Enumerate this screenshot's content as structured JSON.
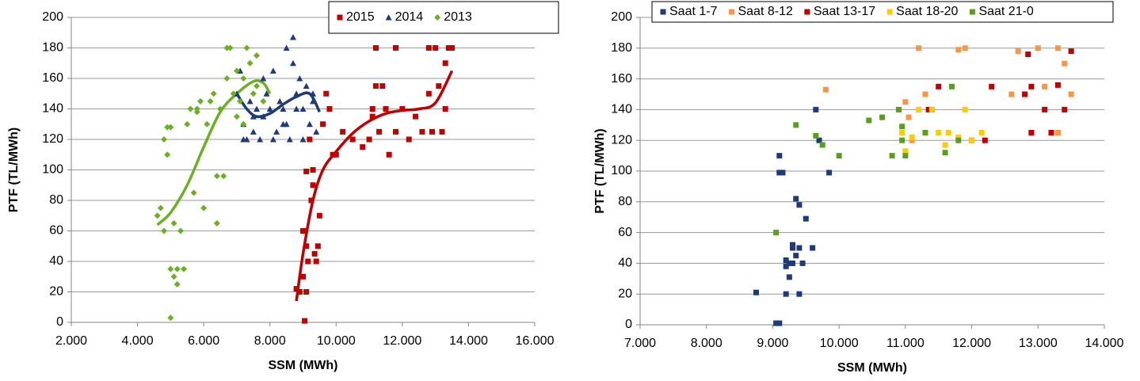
{
  "chart_data": [
    {
      "type": "scatter",
      "xlabel": "SSM (MWh)",
      "ylabel": "PTF (TL/MWh)",
      "xlim": [
        2000,
        16000
      ],
      "xticks": [
        {
          "value": 2000,
          "label": "2.000"
        },
        {
          "value": 4000,
          "label": "4.000"
        },
        {
          "value": 6000,
          "label": "6.000"
        },
        {
          "value": 8000,
          "label": "8.000"
        },
        {
          "value": 10000,
          "label": "10.000"
        },
        {
          "value": 12000,
          "label": "12.000"
        },
        {
          "value": 14000,
          "label": "14.000"
        },
        {
          "value": 16000,
          "label": "16.000"
        }
      ],
      "ylim": [
        0,
        200
      ],
      "yticks": [
        0,
        20,
        40,
        60,
        80,
        100,
        120,
        140,
        160,
        180,
        200
      ],
      "grid": true,
      "legend": "top-right",
      "series": [
        {
          "name": "2015",
          "color": "#c00000",
          "marker": "square",
          "x": [
            8800,
            8900,
            9000,
            9050,
            9100,
            9100,
            9150,
            9200,
            9250,
            9300,
            9350,
            9400,
            9450,
            9500,
            9600,
            9700,
            9800,
            9900,
            10000,
            10200,
            10500,
            10800,
            11000,
            11100,
            11200,
            11300,
            11400,
            11500,
            11600,
            11800,
            12000,
            12200,
            12400,
            12600,
            12800,
            13000,
            13100,
            13200,
            13300,
            13400,
            9000,
            9100,
            9300,
            11200,
            11800,
            12800,
            13300,
            13500,
            11100,
            12900
          ],
          "values": [
            22,
            20,
            60,
            1,
            99,
            50,
            40,
            120,
            80,
            90,
            45,
            40,
            50,
            70,
            130,
            150,
            140,
            110,
            110,
            125,
            120,
            115,
            120,
            140,
            155,
            125,
            155,
            140,
            110,
            125,
            140,
            120,
            135,
            125,
            150,
            180,
            155,
            125,
            140,
            180,
            30,
            20,
            100,
            180,
            180,
            180,
            170,
            180,
            135,
            125
          ],
          "trendline": {
            "x": [
              8800,
              9000,
              9300,
              9600,
              10000,
              10500,
              11000,
              11500,
              12000,
              12500,
              13000,
              13500
            ],
            "values": [
              14,
              45,
              80,
              100,
              112,
              124,
              132,
              137,
              139,
              140,
              144,
              165
            ]
          }
        },
        {
          "name": "2014",
          "color": "#1f3a7a",
          "marker": "triangle",
          "x": [
            7000,
            7100,
            7200,
            7300,
            7400,
            7500,
            7600,
            7700,
            7800,
            7900,
            8000,
            8100,
            8200,
            8300,
            8400,
            8500,
            8600,
            8700,
            8800,
            8900,
            9000,
            9100,
            9200,
            9300,
            9400,
            7200,
            7500,
            7800,
            8100,
            8400,
            8700,
            9000,
            9300,
            8500,
            8800
          ],
          "values": [
            150,
            165,
            130,
            120,
            145,
            125,
            140,
            120,
            135,
            150,
            140,
            165,
            125,
            145,
            130,
            180,
            120,
            187,
            150,
            160,
            140,
            155,
            130,
            150,
            125,
            120,
            135,
            160,
            120,
            140,
            170,
            120,
            145,
            130,
            140
          ],
          "trendline": {
            "x": [
              7000,
              7300,
              7600,
              8000,
              8400,
              8800,
              9200,
              9500
            ],
            "values": [
              150,
              140,
              135,
              137,
              143,
              148,
              150,
              138
            ]
          }
        },
        {
          "name": "2013",
          "color": "#6ab023",
          "marker": "diamond",
          "x": [
            4600,
            4700,
            4800,
            4900,
            5000,
            5000,
            5100,
            5100,
            5200,
            5200,
            5300,
            5400,
            5500,
            5600,
            5700,
            5800,
            5900,
            6000,
            6100,
            6200,
            6300,
            6400,
            6500,
            6600,
            6700,
            6800,
            6900,
            7000,
            7100,
            7200,
            7300,
            7400,
            7500,
            7600,
            7800,
            4800,
            4900,
            5000,
            5400,
            6400,
            6700,
            7200,
            7000,
            7600,
            5800
          ],
          "values": [
            70,
            75,
            60,
            128,
            35,
            3,
            65,
            30,
            35,
            25,
            60,
            35,
            130,
            140,
            85,
            140,
            145,
            75,
            130,
            145,
            150,
            65,
            140,
            96,
            160,
            180,
            150,
            165,
            145,
            160,
            180,
            170,
            150,
            155,
            145,
            120,
            110,
            128,
            35,
            96,
            180,
            130,
            135,
            175,
            138
          ],
          "trendline": {
            "x": [
              4600,
              5000,
              5500,
              6000,
              6500,
              7000,
              7500,
              7800,
              8000
            ],
            "values": [
              64,
              72,
              90,
              115,
              138,
              150,
              158,
              157,
              150
            ]
          }
        }
      ]
    },
    {
      "type": "scatter",
      "xlabel": "SSM (MWh)",
      "ylabel": "PTF (TL/MWh)",
      "xlim": [
        7000,
        14000
      ],
      "xticks": [
        {
          "value": 7000,
          "label": "7.000"
        },
        {
          "value": 8000,
          "label": "8.000"
        },
        {
          "value": 9000,
          "label": "9.000"
        },
        {
          "value": 10000,
          "label": "10.000"
        },
        {
          "value": 11000,
          "label": "11.000"
        },
        {
          "value": 12000,
          "label": "12.000"
        },
        {
          "value": 13000,
          "label": "13.000"
        },
        {
          "value": 14000,
          "label": "14.000"
        }
      ],
      "ylim": [
        0,
        200
      ],
      "yticks": [
        0,
        20,
        40,
        60,
        80,
        100,
        120,
        140,
        160,
        180,
        200
      ],
      "grid": true,
      "legend": "top-left",
      "series": [
        {
          "name": "Saat 1-7",
          "color": "#1f3a7a",
          "marker": "square",
          "x": [
            8750,
            9050,
            9100,
            9150,
            9200,
            9250,
            9300,
            9350,
            9400,
            9450,
            9500,
            9600,
            9650,
            9700,
            9850,
            9100,
            9200,
            9300,
            9400,
            9250,
            9300,
            9350,
            9100,
            9400,
            9200
          ],
          "values": [
            21,
            1,
            110,
            99,
            38,
            40,
            50,
            82,
            78,
            40,
            69,
            50,
            140,
            120,
            99,
            1,
            20,
            40,
            20,
            31,
            52,
            45,
            99,
            50,
            42
          ]
        },
        {
          "name": "Saat 8-12",
          "color": "#f79646",
          "marker": "square",
          "x": [
            9800,
            11000,
            11100,
            11200,
            11300,
            11800,
            11900,
            12600,
            12700,
            12900,
            13000,
            13100,
            13300,
            13400,
            13500,
            13300,
            11050
          ],
          "values": [
            153,
            145,
            120,
            180,
            150,
            179,
            180,
            150,
            178,
            125,
            180,
            155,
            180,
            170,
            150,
            125,
            135
          ]
        },
        {
          "name": "Saat 13-17",
          "color": "#c00000",
          "marker": "square",
          "x": [
            11400,
            11500,
            12000,
            12200,
            12300,
            12800,
            12850,
            12900,
            13100,
            13200,
            13300,
            13400,
            13500,
            11350,
            12900,
            13200
          ],
          "values": [
            140,
            155,
            120,
            120,
            155,
            150,
            176,
            155,
            140,
            125,
            156,
            140,
            178,
            140,
            125,
            125
          ]
        },
        {
          "name": "Saat 18-20",
          "color": "#ffcc00",
          "marker": "square",
          "x": [
            10950,
            11000,
            11100,
            11200,
            11300,
            11400,
            11500,
            11650,
            11800,
            11900,
            12150,
            12000,
            11600
          ],
          "values": [
            125,
            113,
            122,
            140,
            125,
            140,
            125,
            125,
            122,
            140,
            125,
            120,
            117
          ]
        },
        {
          "name": "Saat 21-0",
          "color": "#5a9e1e",
          "marker": "square",
          "x": [
            9050,
            9350,
            9650,
            9750,
            10000,
            10450,
            10650,
            10800,
            10900,
            10950,
            11000,
            11300,
            11700,
            11800,
            11600,
            10950
          ],
          "values": [
            60,
            130,
            123,
            117,
            110,
            133,
            135,
            110,
            140,
            129,
            110,
            125,
            155,
            120,
            112,
            120
          ]
        }
      ]
    }
  ]
}
